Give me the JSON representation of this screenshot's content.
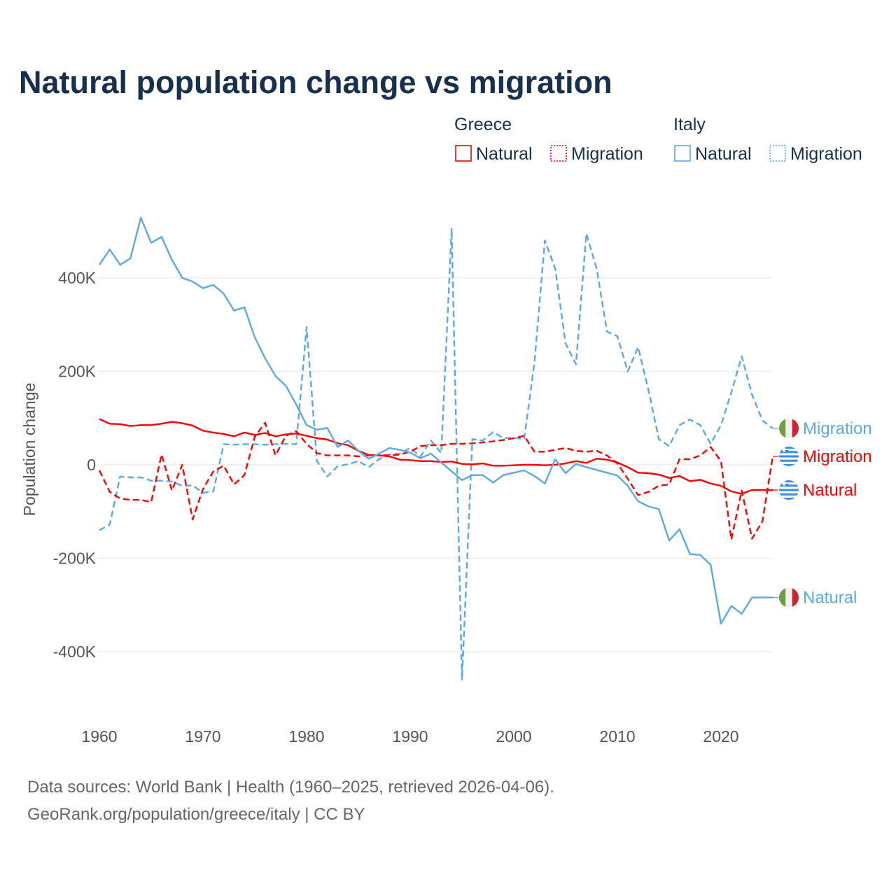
{
  "chart_data": {
    "type": "line",
    "title": "Natural population change vs migration",
    "xlabel": "",
    "ylabel": "Population change",
    "xlim": [
      1960,
      2025
    ],
    "ylim": [
      -460,
      530
    ],
    "yunit": "K",
    "grid": true,
    "x_ticks": [
      "1960",
      "1970",
      "1980",
      "1990",
      "2000",
      "2010",
      "2020"
    ],
    "y_ticks": [
      {
        "v": 400,
        "label": "400K"
      },
      {
        "v": 200,
        "label": "200K"
      },
      {
        "v": 0,
        "label": "0"
      },
      {
        "v": -200,
        "label": "-200K"
      },
      {
        "v": -400,
        "label": "-400K"
      }
    ],
    "legend": {
      "placement": "top-right",
      "groups": [
        {
          "country": "Greece",
          "items": [
            {
              "label": "Natural",
              "style": "solid"
            },
            {
              "label": "Migration",
              "style": "dotted"
            }
          ]
        },
        {
          "country": "Italy",
          "items": [
            {
              "label": "Natural",
              "style": "solid"
            },
            {
              "label": "Migration",
              "style": "dotted"
            }
          ]
        }
      ]
    },
    "x_start": 1960,
    "series": [
      {
        "name": "Italy Migration",
        "country": "Italy",
        "kind": "Migration",
        "color": "#5ba8ea",
        "dashed": true,
        "end_label": "Migration",
        "flag": "italy",
        "values": [
          -140,
          -128,
          -25,
          -27,
          -27,
          -34,
          -34,
          -36,
          -45,
          -44,
          -60,
          -57,
          44,
          43,
          44,
          44,
          43,
          44,
          45,
          44,
          295,
          8,
          -25,
          -3,
          1,
          8,
          -5,
          12,
          22,
          24,
          36,
          18,
          52,
          25,
          505,
          -460,
          55,
          52,
          70,
          57,
          58,
          55,
          220,
          480,
          420,
          260,
          215,
          495,
          420,
          285,
          275,
          200,
          252,
          160,
          55,
          40,
          85,
          97,
          85,
          45,
          85,
          155,
          232,
          150,
          95,
          78
        ]
      },
      {
        "name": "Greece Migration",
        "country": "Greece",
        "kind": "Migration",
        "color": "#ff0000",
        "dashed": true,
        "end_label": "Migration",
        "flag": "greece",
        "values": [
          -12,
          -58,
          -72,
          -75,
          -75,
          -80,
          22,
          -55,
          0,
          -117,
          -52,
          -14,
          -2,
          -42,
          -22,
          60,
          90,
          20,
          62,
          72,
          45,
          25,
          20,
          20,
          20,
          18,
          20,
          21,
          20,
          22,
          28,
          40,
          42,
          42,
          45,
          45,
          46,
          48,
          50,
          53,
          57,
          62,
          28,
          28,
          32,
          36,
          30,
          28,
          30,
          20,
          3,
          -30,
          -65,
          -58,
          -45,
          -42,
          12,
          12,
          20,
          38,
          8,
          -160,
          -55,
          -158,
          -121,
          18
        ]
      },
      {
        "name": "Greece Natural",
        "country": "Greece",
        "kind": "Natural",
        "color": "#ff0000",
        "dashed": false,
        "end_label": "Natural",
        "flag": "greece",
        "values": [
          98,
          88,
          87,
          83,
          85,
          85,
          88,
          92,
          89,
          84,
          73,
          69,
          66,
          61,
          69,
          64,
          68,
          61,
          65,
          67,
          62,
          57,
          54,
          46,
          42,
          30,
          21,
          20,
          18,
          11,
          10,
          8,
          8,
          6,
          7,
          2,
          1,
          3,
          -2,
          -2,
          -1,
          0,
          0,
          -1,
          0,
          3,
          8,
          4,
          13,
          11,
          5,
          -5,
          -17,
          -18,
          -21,
          -28,
          -24,
          -35,
          -32,
          -40,
          -45,
          -57,
          -62,
          -54,
          -54,
          -54
        ]
      },
      {
        "name": "Italy Natural",
        "country": "Italy",
        "kind": "Natural",
        "color": "#5ba8ea",
        "dashed": false,
        "end_label": "Natural",
        "flag": "italy",
        "values": [
          428,
          461,
          428,
          442,
          529,
          475,
          488,
          439,
          400,
          392,
          378,
          385,
          366,
          330,
          337,
          273,
          228,
          190,
          169,
          129,
          85,
          75,
          79,
          38,
          52,
          30,
          13,
          24,
          36,
          32,
          26,
          14,
          24,
          5,
          -14,
          -33,
          -22,
          -22,
          -38,
          -22,
          -17,
          -12,
          -24,
          -40,
          12,
          -18,
          2,
          -5,
          -11,
          -17,
          -23,
          -45,
          -78,
          -89,
          -95,
          -162,
          -138,
          -191,
          -193,
          -214,
          -340,
          -302,
          -319,
          -284,
          -284,
          -284
        ]
      }
    ]
  },
  "footer": {
    "line1": "Data sources: World Bank | Health (1960–2025, retrieved 2026-04-06).",
    "line2": "GeoRank.org/population/greece/italy | CC BY"
  }
}
